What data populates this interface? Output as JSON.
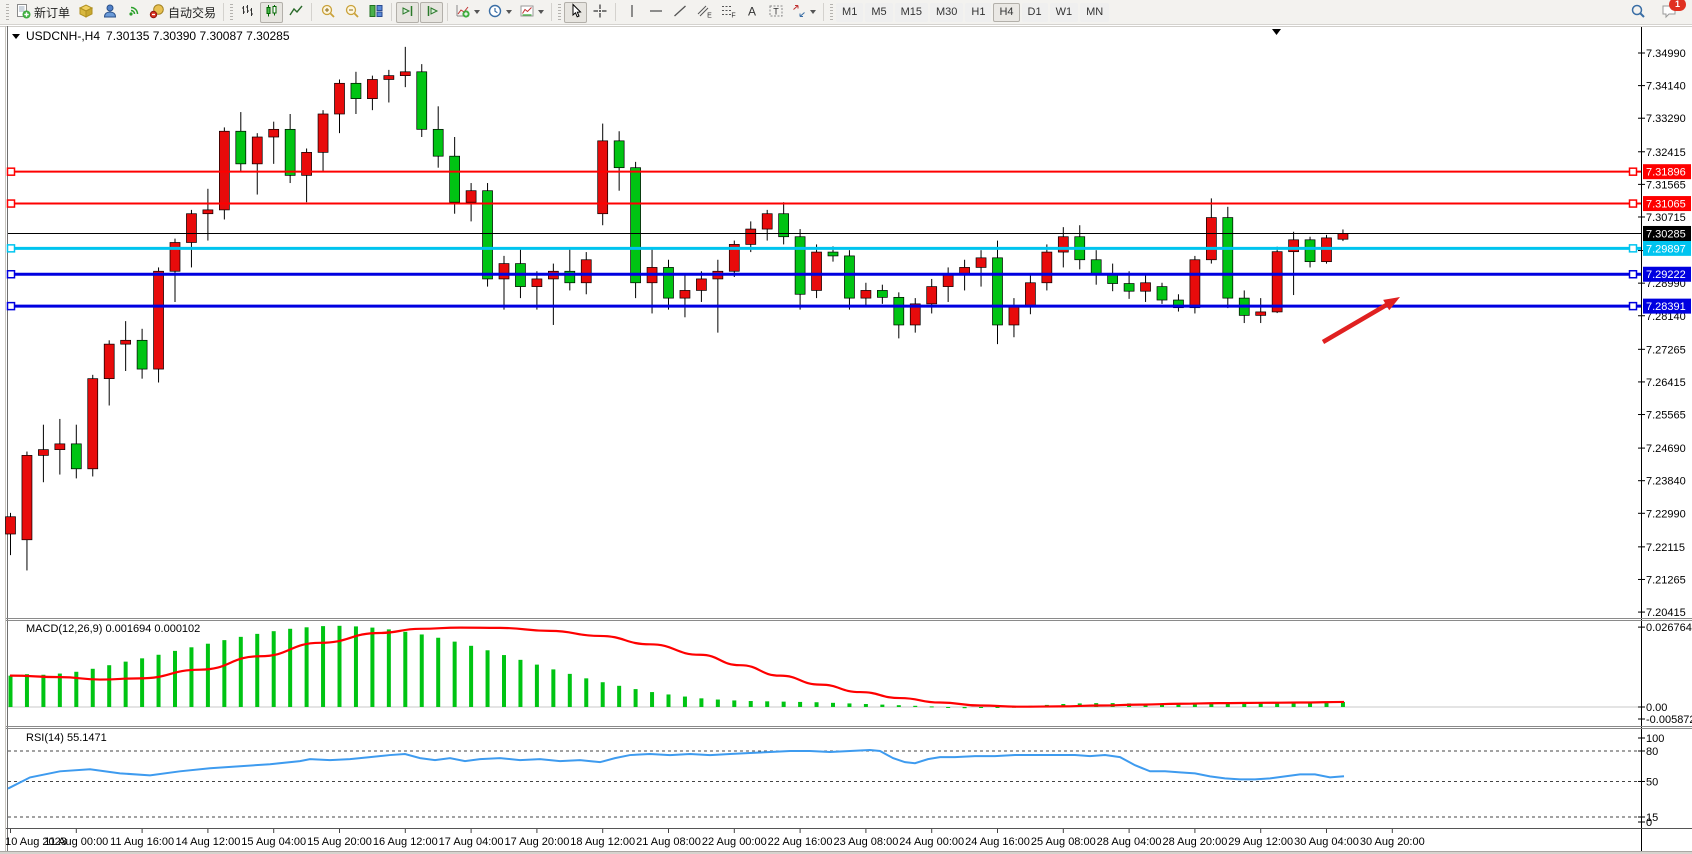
{
  "toolbar": {
    "new_order_label": "新订单",
    "auto_trading_label": "自动交易",
    "timeframes": [
      "M1",
      "M5",
      "M15",
      "M30",
      "H1",
      "H4",
      "D1",
      "W1",
      "MN"
    ],
    "active_timeframe": "H4",
    "notification_badge": "1",
    "tool_letters": {
      "channel": "E",
      "fib": "F",
      "text": "A",
      "label": "T"
    }
  },
  "chart": {
    "title_symbol": "USDCNH-,H4",
    "title_ohlc": "7.30135 7.30390 7.30087 7.30285",
    "macd_label": "MACD(12,26,9) 0.001694 0.000102",
    "rsi_label": "RSI(14) 55.1471"
  },
  "chart_data": {
    "type": "candlestick",
    "symbol": "USDCNH-",
    "period": "H4",
    "ohlc_current": {
      "open": 7.30135,
      "high": 7.3039,
      "low": 7.30087,
      "close": 7.30285
    },
    "bull_color": "#E80B0B",
    "bear_color": "#00C413",
    "candles": [
      [
        7.2245,
        7.23,
        7.219,
        7.229
      ],
      [
        7.223,
        7.246,
        7.215,
        7.245
      ],
      [
        7.245,
        7.253,
        7.238,
        7.2465
      ],
      [
        7.2465,
        7.2545,
        7.24,
        7.248
      ],
      [
        7.248,
        7.253,
        7.239,
        7.2415
      ],
      [
        7.2415,
        7.266,
        7.2395,
        7.265
      ],
      [
        7.265,
        7.275,
        7.258,
        7.274
      ],
      [
        7.274,
        7.28,
        7.267,
        7.275
      ],
      [
        7.275,
        7.278,
        7.265,
        7.2675
      ],
      [
        7.2675,
        7.294,
        7.264,
        7.293
      ],
      [
        7.293,
        7.3015,
        7.285,
        7.3005
      ],
      [
        7.3005,
        7.309,
        7.294,
        7.308
      ],
      [
        7.308,
        7.3145,
        7.301,
        7.309
      ],
      [
        7.309,
        7.3305,
        7.3065,
        7.3295
      ],
      [
        7.3295,
        7.3345,
        7.319,
        7.321
      ],
      [
        7.321,
        7.329,
        7.313,
        7.328
      ],
      [
        7.328,
        7.332,
        7.321,
        7.33
      ],
      [
        7.33,
        7.334,
        7.316,
        7.318
      ],
      [
        7.318,
        7.325,
        7.311,
        7.324
      ],
      [
        7.324,
        7.335,
        7.319,
        7.334
      ],
      [
        7.334,
        7.343,
        7.329,
        7.342
      ],
      [
        7.342,
        7.345,
        7.334,
        7.338
      ],
      [
        7.338,
        7.344,
        7.335,
        7.343
      ],
      [
        7.343,
        7.3455,
        7.337,
        7.344
      ],
      [
        7.344,
        7.3515,
        7.341,
        7.345
      ],
      [
        7.345,
        7.347,
        7.328,
        7.33
      ],
      [
        7.33,
        7.336,
        7.32,
        7.323
      ],
      [
        7.323,
        7.328,
        7.308,
        7.311
      ],
      [
        7.311,
        7.316,
        7.306,
        7.314
      ],
      [
        7.314,
        7.316,
        7.289,
        7.291
      ],
      [
        7.291,
        7.297,
        7.283,
        7.295
      ],
      [
        7.295,
        7.299,
        7.286,
        7.289
      ],
      [
        7.289,
        7.293,
        7.283,
        7.291
      ],
      [
        7.291,
        7.295,
        7.279,
        7.293
      ],
      [
        7.293,
        7.299,
        7.288,
        7.29
      ],
      [
        7.29,
        7.298,
        7.287,
        7.296
      ],
      [
        7.308,
        7.3315,
        7.305,
        7.327
      ],
      [
        7.327,
        7.3295,
        7.314,
        7.32
      ],
      [
        7.32,
        7.3215,
        7.286,
        7.29
      ],
      [
        7.29,
        7.299,
        7.282,
        7.294
      ],
      [
        7.294,
        7.296,
        7.283,
        7.286
      ],
      [
        7.286,
        7.292,
        7.281,
        7.288
      ],
      [
        7.288,
        7.293,
        7.285,
        7.291
      ],
      [
        7.291,
        7.296,
        7.277,
        7.293
      ],
      [
        7.293,
        7.301,
        7.2915,
        7.3
      ],
      [
        7.3,
        7.306,
        7.298,
        7.304
      ],
      [
        7.304,
        7.309,
        7.301,
        7.308
      ],
      [
        7.308,
        7.311,
        7.3,
        7.302
      ],
      [
        7.302,
        7.304,
        7.283,
        7.287
      ],
      [
        7.288,
        7.3,
        7.286,
        7.298
      ],
      [
        7.298,
        7.2995,
        7.2955,
        7.297
      ],
      [
        7.297,
        7.2985,
        7.283,
        7.286
      ],
      [
        7.286,
        7.29,
        7.284,
        7.288
      ],
      [
        7.288,
        7.2895,
        7.2845,
        7.2862
      ],
      [
        7.2862,
        7.2875,
        7.2755,
        7.279
      ],
      [
        7.279,
        7.286,
        7.277,
        7.2845
      ],
      [
        7.2845,
        7.291,
        7.282,
        7.289
      ],
      [
        7.289,
        7.294,
        7.285,
        7.292
      ],
      [
        7.292,
        7.296,
        7.288,
        7.294
      ],
      [
        7.294,
        7.2985,
        7.289,
        7.2965
      ],
      [
        7.2965,
        7.301,
        7.274,
        7.279
      ],
      [
        7.279,
        7.286,
        7.2758,
        7.284
      ],
      [
        7.284,
        7.292,
        7.2818,
        7.29
      ],
      [
        7.29,
        7.3,
        7.288,
        7.298
      ],
      [
        7.298,
        7.3045,
        7.294,
        7.302
      ],
      [
        7.302,
        7.305,
        7.2935,
        7.296
      ],
      [
        7.296,
        7.2985,
        7.2895,
        7.292
      ],
      [
        7.292,
        7.295,
        7.2878,
        7.2898
      ],
      [
        7.2898,
        7.293,
        7.2858,
        7.2878
      ],
      [
        7.2878,
        7.2922,
        7.285,
        7.29
      ],
      [
        7.289,
        7.29,
        7.2845,
        7.2855
      ],
      [
        7.2855,
        7.287,
        7.2825,
        7.2835
      ],
      [
        7.2835,
        7.297,
        7.282,
        7.296
      ],
      [
        7.296,
        7.312,
        7.295,
        7.307
      ],
      [
        7.307,
        7.3098,
        7.2834,
        7.286
      ],
      [
        7.286,
        7.288,
        7.2795,
        7.2815
      ],
      [
        7.2815,
        7.286,
        7.2795,
        7.2824
      ],
      [
        7.2824,
        7.2994,
        7.2821,
        7.2981
      ],
      [
        7.2981,
        7.3033,
        7.2868,
        7.3012
      ],
      [
        7.3012,
        7.302,
        7.294,
        7.2955
      ],
      [
        7.2955,
        7.3025,
        7.295,
        7.3017
      ],
      [
        7.30135,
        7.3039,
        7.30087,
        7.30285
      ]
    ],
    "price_ticks": [
      "7.34990",
      "7.34140",
      "7.33290",
      "7.32415",
      "7.31565",
      "7.30715",
      "7.29840",
      "7.28990",
      "7.28140",
      "7.27265",
      "7.26415",
      "7.25565",
      "7.24690",
      "7.23840",
      "7.22990",
      "7.22115",
      "7.21265",
      "7.20415"
    ],
    "time_labels": [
      "10 Aug 2023",
      "11 Aug 00:00",
      "11 Aug 16:00",
      "14 Aug 12:00",
      "15 Aug 04:00",
      "15 Aug 20:00",
      "16 Aug 12:00",
      "17 Aug 04:00",
      "17 Aug 20:00",
      "18 Aug 12:00",
      "21 Aug 08:00",
      "22 Aug 00:00",
      "22 Aug 16:00",
      "23 Aug 08:00",
      "24 Aug 00:00",
      "24 Aug 16:00",
      "25 Aug 08:00",
      "28 Aug 04:00",
      "28 Aug 20:00",
      "29 Aug 12:00",
      "30 Aug 04:00",
      "30 Aug 20:00"
    ],
    "hlines": [
      {
        "price": 7.31896,
        "label": "7.31896",
        "color": "#FE0000",
        "width": 2
      },
      {
        "price": 7.31065,
        "label": "7.31065",
        "color": "#FE0000",
        "width": 2
      },
      {
        "price": 7.29897,
        "label": "7.29897",
        "color": "#00C4EF",
        "width": 3
      },
      {
        "price": 7.29222,
        "label": "7.29222",
        "color": "#0000E0",
        "width": 3
      },
      {
        "price": 7.28391,
        "label": "7.28391",
        "color": "#0000E0",
        "width": 3
      }
    ],
    "current_price": {
      "value": 7.30285,
      "label": "7.30285",
      "color": "#000000"
    },
    "indicators": [
      {
        "name": "MACD",
        "params": "12,26,9",
        "values": [
          0.001694,
          0.000102
        ],
        "axis_labels": [
          "0.026764",
          "0.00",
          "-0.005872"
        ],
        "histogram_color": "#00C413",
        "signal_color": "#FE0000",
        "histogram": [
          0.0105,
          0.011,
          0.0108,
          0.0112,
          0.0118,
          0.0128,
          0.014,
          0.0152,
          0.0163,
          0.0175,
          0.0188,
          0.02,
          0.0212,
          0.0224,
          0.0235,
          0.0245,
          0.0254,
          0.0262,
          0.0267,
          0.0271,
          0.0272,
          0.027,
          0.0266,
          0.026,
          0.0252,
          0.0243,
          0.0232,
          0.0219,
          0.0205,
          0.019,
          0.0174,
          0.0158,
          0.0142,
          0.0126,
          0.0111,
          0.0096,
          0.0083,
          0.0071,
          0.006,
          0.005,
          0.0042,
          0.0035,
          0.0029,
          0.0025,
          0.0022,
          0.002,
          0.0019,
          0.0018,
          0.0017,
          0.0016,
          0.0014,
          0.0012,
          0.001,
          0.0008,
          0.0006,
          0.0004,
          0.0002,
          -0.0002,
          -0.0004,
          -0.0003,
          -0.0002,
          0.0001,
          0.0004,
          0.0007,
          0.001,
          0.0012,
          0.0013,
          0.0013,
          0.0012,
          0.0011,
          0.001,
          0.0009,
          0.0009,
          0.001,
          0.0011,
          0.0012,
          0.0013,
          0.0014,
          0.0015,
          0.0015,
          0.0016,
          0.0017
        ],
        "signal_points": [
          [
            10,
            0.0105
          ],
          [
            60,
            0.01
          ],
          [
            100,
            0.0092
          ],
          [
            140,
            0.0096
          ],
          [
            200,
            0.0125
          ],
          [
            260,
            0.017
          ],
          [
            320,
            0.0215
          ],
          [
            380,
            0.0248
          ],
          [
            420,
            0.0262
          ],
          [
            460,
            0.0266
          ],
          [
            500,
            0.0265
          ],
          [
            550,
            0.0255
          ],
          [
            600,
            0.0238
          ],
          [
            650,
            0.021
          ],
          [
            700,
            0.0175
          ],
          [
            740,
            0.014
          ],
          [
            780,
            0.0105
          ],
          [
            820,
            0.0075
          ],
          [
            860,
            0.005
          ],
          [
            900,
            0.003
          ],
          [
            940,
            0.0015
          ],
          [
            980,
            0.0005
          ],
          [
            1020,
            0.0001
          ],
          [
            1060,
            0.0002
          ],
          [
            1100,
            0.0005
          ],
          [
            1140,
            0.0008
          ],
          [
            1180,
            0.0011
          ],
          [
            1220,
            0.0013
          ],
          [
            1260,
            0.0014
          ],
          [
            1300,
            0.0015
          ],
          [
            1344,
            0.0017
          ]
        ]
      },
      {
        "name": "RSI",
        "params": "14",
        "value": 55.1471,
        "levels": [
          80,
          50,
          15
        ],
        "axis_labels": [
          "100",
          "80",
          "50",
          "15",
          "0"
        ],
        "line_color": "#3E9BEF",
        "line_points": [
          [
            8,
            43
          ],
          [
            30,
            54
          ],
          [
            60,
            60
          ],
          [
            90,
            62
          ],
          [
            120,
            58
          ],
          [
            150,
            56
          ],
          [
            180,
            60
          ],
          [
            210,
            63
          ],
          [
            240,
            65
          ],
          [
            270,
            67
          ],
          [
            300,
            70
          ],
          [
            310,
            72
          ],
          [
            330,
            71
          ],
          [
            350,
            72
          ],
          [
            370,
            74
          ],
          [
            390,
            76
          ],
          [
            405,
            77
          ],
          [
            420,
            73
          ],
          [
            435,
            71
          ],
          [
            450,
            73
          ],
          [
            465,
            70
          ],
          [
            480,
            72
          ],
          [
            500,
            73
          ],
          [
            520,
            71
          ],
          [
            540,
            72
          ],
          [
            560,
            70
          ],
          [
            580,
            71
          ],
          [
            600,
            69
          ],
          [
            615,
            73
          ],
          [
            630,
            76
          ],
          [
            650,
            77
          ],
          [
            670,
            76
          ],
          [
            690,
            77
          ],
          [
            710,
            76
          ],
          [
            730,
            77
          ],
          [
            750,
            78
          ],
          [
            770,
            79
          ],
          [
            790,
            80
          ],
          [
            810,
            80
          ],
          [
            830,
            79
          ],
          [
            850,
            80
          ],
          [
            870,
            81
          ],
          [
            880,
            80
          ],
          [
            893,
            73
          ],
          [
            905,
            69
          ],
          [
            915,
            68
          ],
          [
            928,
            72
          ],
          [
            940,
            74
          ],
          [
            955,
            74
          ],
          [
            975,
            75
          ],
          [
            995,
            75
          ],
          [
            1015,
            76
          ],
          [
            1035,
            76
          ],
          [
            1055,
            76
          ],
          [
            1075,
            76
          ],
          [
            1090,
            75
          ],
          [
            1105,
            76
          ],
          [
            1120,
            74
          ],
          [
            1135,
            66
          ],
          [
            1150,
            60
          ],
          [
            1165,
            60
          ],
          [
            1180,
            59
          ],
          [
            1195,
            58
          ],
          [
            1210,
            55
          ],
          [
            1225,
            53
          ],
          [
            1240,
            52
          ],
          [
            1255,
            52
          ],
          [
            1270,
            53
          ],
          [
            1285,
            55
          ],
          [
            1300,
            57
          ],
          [
            1315,
            57
          ],
          [
            1330,
            54
          ],
          [
            1344,
            55.15
          ]
        ]
      }
    ],
    "arrow_annotation": {
      "from": [
        1323,
        342
      ],
      "to": [
        1400,
        297
      ],
      "color": "#E02020"
    }
  }
}
